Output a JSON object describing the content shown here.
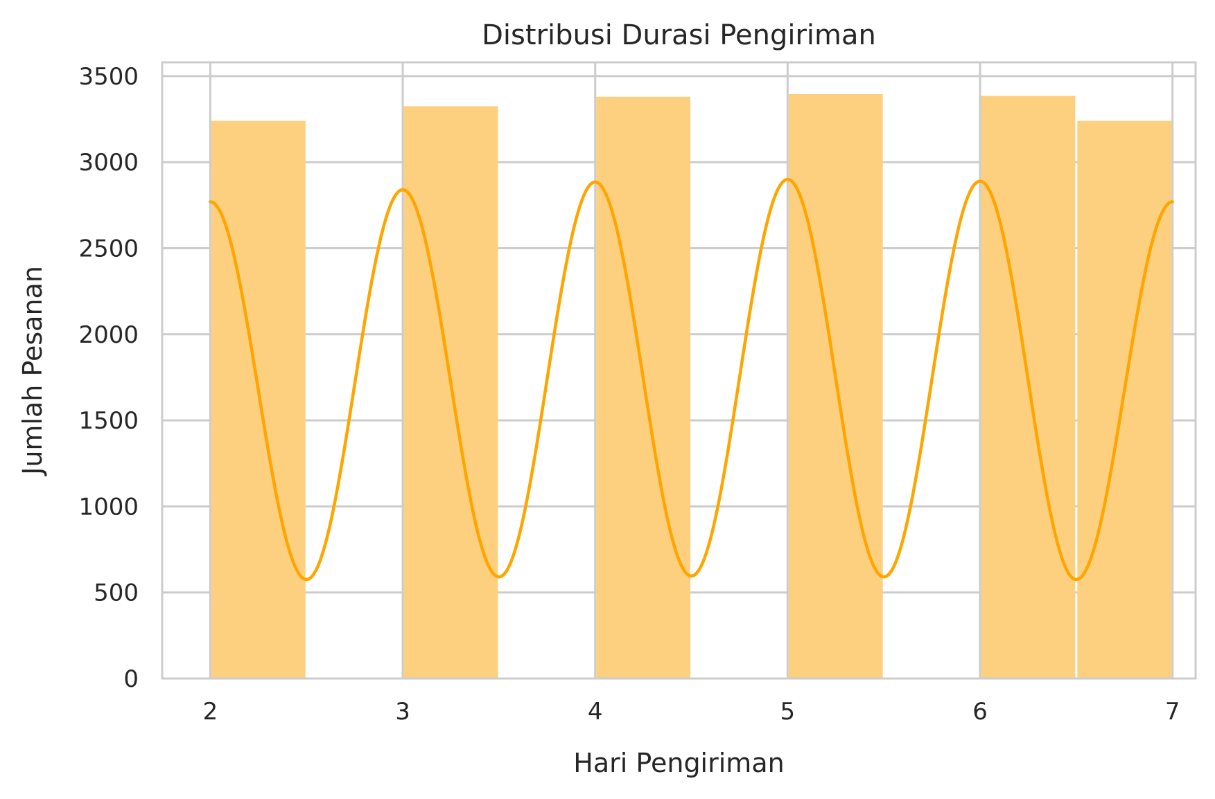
{
  "chart_data": {
    "type": "bar",
    "title": "Distribusi Durasi Pengiriman",
    "xlabel": "Hari Pengiriman",
    "ylabel": "Jumlah Pesanan",
    "xlim": [
      1.75,
      7.12
    ],
    "ylim": [
      0,
      3580
    ],
    "x_ticks": [
      2,
      3,
      4,
      5,
      6,
      7
    ],
    "y_ticks": [
      0,
      500,
      1000,
      1500,
      2000,
      2500,
      3000,
      3500
    ],
    "grid": true,
    "bins": [
      {
        "start": 2.0,
        "end": 2.5,
        "value": 3240
      },
      {
        "start": 3.0,
        "end": 3.5,
        "value": 3325
      },
      {
        "start": 4.0,
        "end": 4.5,
        "value": 3380
      },
      {
        "start": 5.0,
        "end": 5.5,
        "value": 3395
      },
      {
        "start": 6.0,
        "end": 6.5,
        "value": 3385
      },
      {
        "start": 6.5,
        "end": 7.0,
        "value": 3240
      }
    ],
    "kde_curve": {
      "x": [
        2.0,
        2.5,
        3.0,
        3.5,
        4.0,
        4.5,
        5.0,
        5.5,
        6.0,
        6.5,
        7.0
      ],
      "y": [
        2770,
        575,
        2840,
        590,
        2885,
        595,
        2900,
        590,
        2890,
        575,
        2770
      ]
    },
    "colors": {
      "bar": "#fdd080",
      "curve": "#ffa500",
      "grid": "#cccccc",
      "spine": "#cccccc",
      "text": "#262626"
    }
  }
}
